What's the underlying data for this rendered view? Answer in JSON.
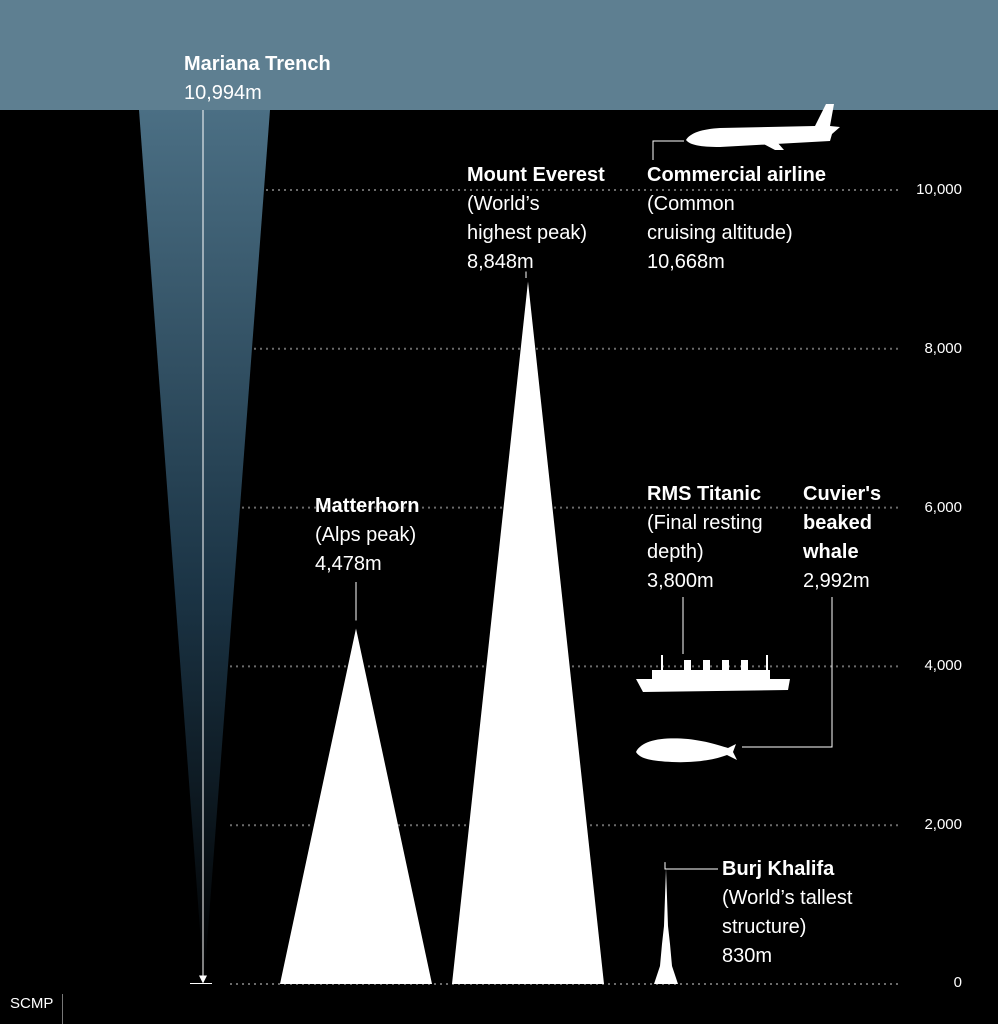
{
  "chart_data": {
    "type": "bar",
    "title": "",
    "xlabel": "",
    "ylabel": "",
    "ylim": [
      0,
      11000
    ],
    "yticks": [
      0,
      2000,
      4000,
      6000,
      8000,
      10000
    ],
    "ytick_labels": [
      "0",
      "2,000",
      "4,000",
      "6,000",
      "8,000",
      "10,000"
    ],
    "grid": true,
    "colors": {
      "sea": "#5e7f91",
      "trench_top": "#4a6b7d",
      "background": "#000000",
      "shape": "#ffffff"
    },
    "items": [
      {
        "id": "trench",
        "name": "Mariana Trench",
        "desc": [],
        "value_label": "10,994m",
        "value": 10994,
        "kind": "depth"
      },
      {
        "id": "matterhorn",
        "name": "Matterhorn",
        "desc": [
          "(Alps peak)"
        ],
        "value_label": "4,478m",
        "value": 4478,
        "kind": "height"
      },
      {
        "id": "everest",
        "name": "Mount Everest",
        "desc": [
          "(World’s",
          "highest peak)"
        ],
        "value_label": "8,848m",
        "value": 8848,
        "kind": "height"
      },
      {
        "id": "airline",
        "name": "Commercial airline",
        "desc": [
          "(Common",
          "cruising altitude)"
        ],
        "value_label": "10,668m",
        "value": 10668,
        "kind": "height"
      },
      {
        "id": "titanic",
        "name": "RMS Titanic",
        "desc": [
          "(Final resting",
          "depth)"
        ],
        "value_label": "3,800m",
        "value": 3800,
        "kind": "depth"
      },
      {
        "id": "whale",
        "name": "Cuvier's beaked whale",
        "name_lines": [
          "Cuvier's",
          "beaked",
          "whale"
        ],
        "desc": [],
        "value_label": "2,992m",
        "value": 2992,
        "kind": "depth"
      },
      {
        "id": "burj",
        "name": "Burj Khalifa",
        "desc": [
          "(World’s tallest",
          "structure)"
        ],
        "value_label": "830m",
        "value": 830,
        "kind": "height"
      }
    ]
  },
  "source": "SCMP",
  "icons": {
    "airplane": "airplane-icon",
    "ship": "ship-icon",
    "whale": "whale-icon"
  }
}
